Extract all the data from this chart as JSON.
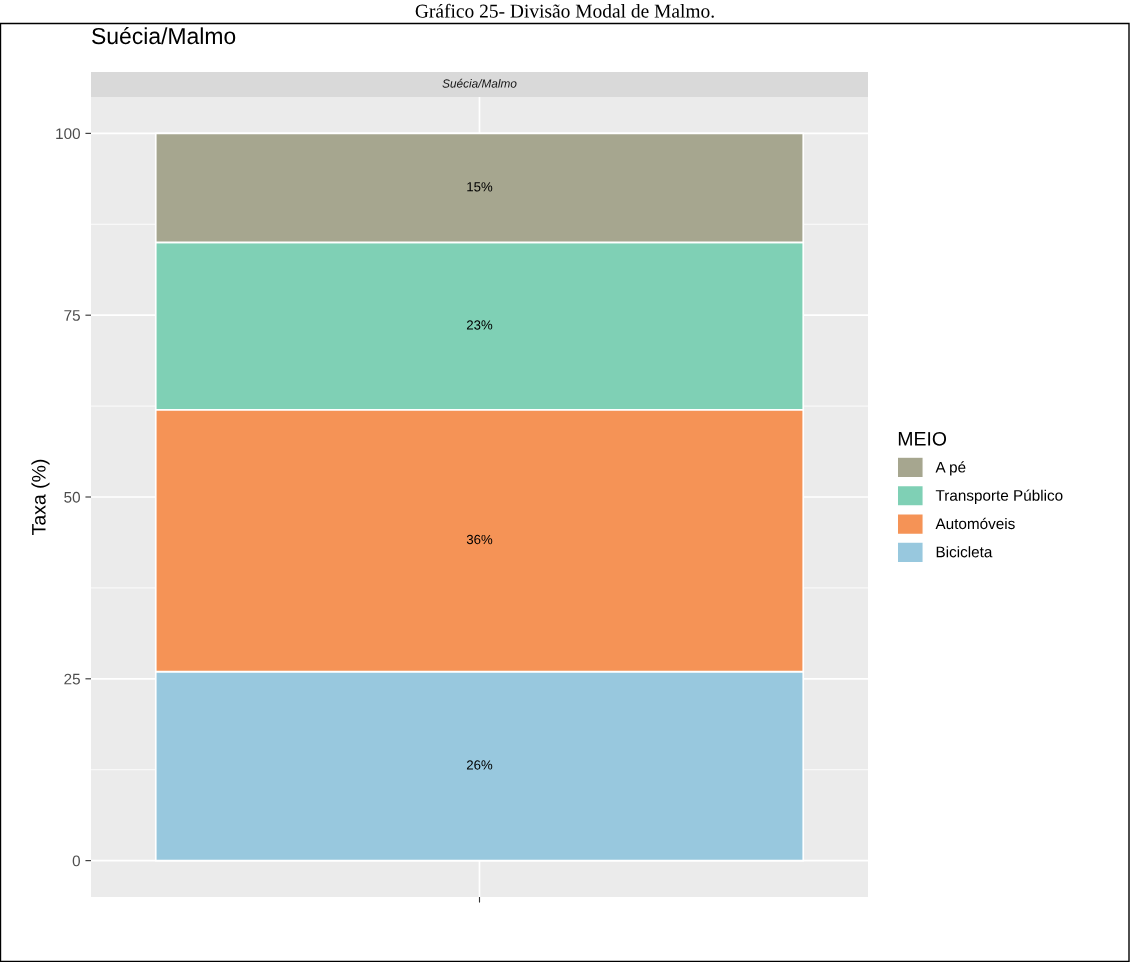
{
  "chart_data": {
    "type": "bar",
    "title": "Suécia/Malmo",
    "subtitle": "Suécia/Malmo",
    "annotations": [
      "Gráfico 25- Divisão Modal de Malmo."
    ],
    "ylabel": "Taxa (%)",
    "legend_title": "MEIO",
    "categories": [
      null
    ],
    "stacked": true,
    "series": [
      {
        "name": "Bicicleta",
        "color": "#98c8de",
        "values": [
          26
        ],
        "value_labels": [
          "26%"
        ]
      },
      {
        "name": "Automóveis",
        "color": "#f59356",
        "values": [
          36
        ],
        "value_labels": [
          "36%"
        ]
      },
      {
        "name": "Transporte Público",
        "color": "#7fd0b5",
        "values": [
          23
        ],
        "value_labels": [
          "23%"
        ]
      },
      {
        "name": "A pé",
        "color": "#a6a68f",
        "values": [
          15
        ],
        "value_labels": [
          "15%"
        ]
      }
    ],
    "ylim": [
      -5,
      105
    ],
    "yticks": [
      0,
      25,
      50,
      75,
      100
    ],
    "grid": true,
    "legend": "right"
  }
}
